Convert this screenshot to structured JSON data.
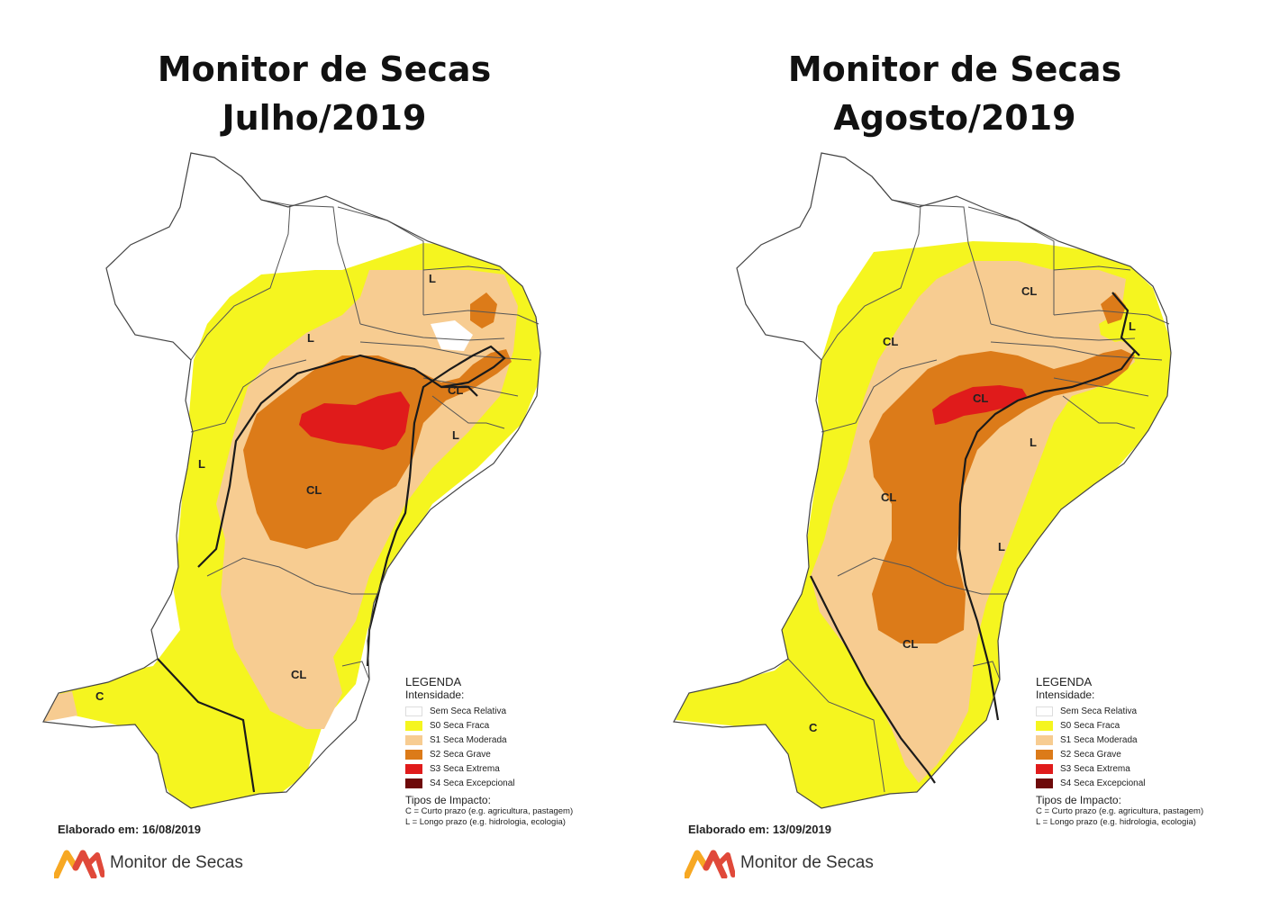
{
  "colors": {
    "s0": "#f5f51f",
    "s1": "#f7cc91",
    "s2": "#dc7b19",
    "s3": "#e01b1b",
    "s4": "#6e0a0a",
    "none": "#ffffff",
    "brand_orange": "#f7a823",
    "brand_red": "#e0493a"
  },
  "panels": [
    {
      "title_line1": "Monitor de Secas",
      "title_line2": "Julho/2019",
      "impact_labels": [
        "L",
        "L",
        "CL",
        "L",
        "L",
        "CL",
        "CL",
        "C"
      ],
      "date": "Elaborado em: 16/08/2019",
      "brand": "Monitor de Secas"
    },
    {
      "title_line1": "Monitor de Secas",
      "title_line2": "Agosto/2019",
      "impact_labels": [
        "CL",
        "CL",
        "L",
        "CL",
        "L",
        "CL",
        "L",
        "CL",
        "C"
      ],
      "date": "Elaborado em: 13/09/2019",
      "brand": "Monitor de Secas"
    }
  ],
  "legend": {
    "title": "LEGENDA",
    "subtitle": "Intensidade:",
    "items": [
      {
        "label": "Sem Seca Relativa",
        "color": "#ffffff"
      },
      {
        "label": "S0 Seca Fraca",
        "color": "#f5f51f"
      },
      {
        "label": "S1 Seca Moderada",
        "color": "#f7cc91"
      },
      {
        "label": "S2 Seca Grave",
        "color": "#dc7b19"
      },
      {
        "label": "S3 Seca Extrema",
        "color": "#e01b1b"
      },
      {
        "label": "S4 Seca Excepcional",
        "color": "#6e0a0a"
      }
    ],
    "types_title": "Tipos de Impacto:",
    "types": [
      "C = Curto prazo (e.g. agricultura, pastagem)",
      "L = Longo prazo (e.g. hidrologia, ecologia)"
    ]
  }
}
